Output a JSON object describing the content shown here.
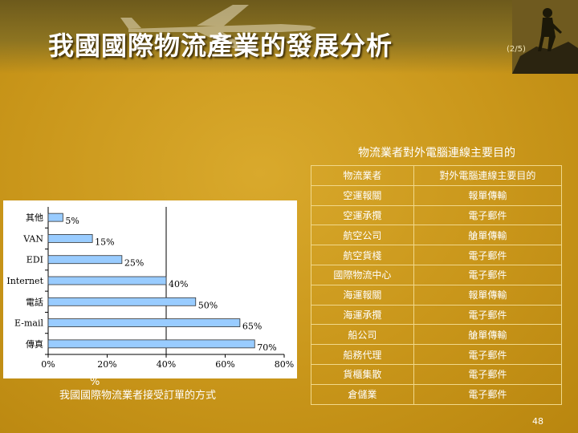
{
  "header": {
    "title": "我國國際物流產業的發展分析",
    "page_fraction": "(2/5)"
  },
  "chart": {
    "caption": "我國國際物流業者接受訂單的方式",
    "stray_text": "%",
    "colors": {
      "bar": "#99ccff",
      "bar_stroke": "#333333",
      "axis": "#000000"
    }
  },
  "chart_data": {
    "type": "bar",
    "orientation": "horizontal",
    "categories": [
      "其他",
      "VAN",
      "EDI",
      "Internet",
      "電話",
      "E-mail",
      "傳真"
    ],
    "values": [
      5,
      15,
      25,
      40,
      50,
      65,
      70
    ],
    "data_labels": [
      "5%",
      "15%",
      "25%",
      "40%",
      "50%",
      "65%",
      "70%"
    ],
    "xticks": [
      "0%",
      "20%",
      "40%",
      "60%",
      "80%"
    ],
    "xlim": [
      0,
      80
    ],
    "grid": false
  },
  "table": {
    "title": "物流業者對外電腦連線主要目的",
    "header": [
      "物流業者",
      "對外電腦連線主要目的"
    ],
    "rows": [
      [
        "空運報關",
        "報單傳輸"
      ],
      [
        "空運承攬",
        "電子郵件"
      ],
      [
        "航空公司",
        "艙單傳輸"
      ],
      [
        "航空貨棧",
        "電子郵件"
      ],
      [
        "國際物流中心",
        "電子郵件"
      ],
      [
        "海運報關",
        "報單傳輸"
      ],
      [
        "海運承攬",
        "電子郵件"
      ],
      [
        "船公司",
        "艙單傳輸"
      ],
      [
        "船務代理",
        "電子郵件"
      ],
      [
        "貨櫃集散",
        "電子郵件"
      ],
      [
        "倉儲業",
        "電子郵件"
      ]
    ]
  },
  "footer": {
    "slide_number": "48"
  },
  "theme": {
    "background": "#c9961a",
    "text": "#ffffff",
    "table_border": "#f1d88a"
  }
}
